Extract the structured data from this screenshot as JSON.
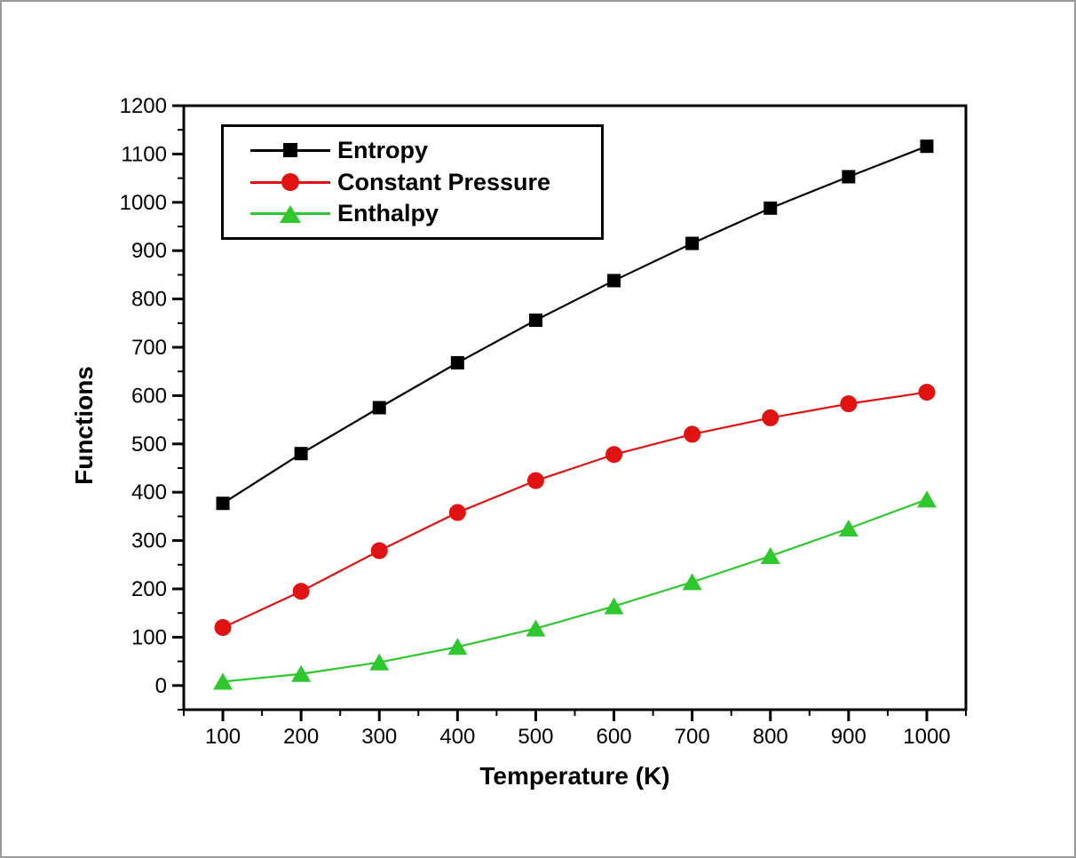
{
  "chart_data": {
    "type": "line",
    "x": [
      100,
      200,
      300,
      400,
      500,
      600,
      700,
      800,
      900,
      1000
    ],
    "series": [
      {
        "name": "Entropy",
        "marker": "square",
        "color": "#000000",
        "values": [
          377,
          480,
          575,
          668,
          756,
          838,
          915,
          988,
          1053,
          1116
        ]
      },
      {
        "name": "Constant Pressure",
        "marker": "circle",
        "color": "#e01212",
        "values": [
          120,
          195,
          279,
          358,
          424,
          478,
          520,
          554,
          583,
          607
        ]
      },
      {
        "name": "Enthalpy",
        "marker": "triangle",
        "color": "#2ec82e",
        "values": [
          8,
          24,
          48,
          80,
          118,
          164,
          214,
          268,
          325,
          385
        ]
      }
    ],
    "title": "",
    "xlabel": "Temperature (K)",
    "ylabel": "Functions",
    "xlim": [
      50,
      1050
    ],
    "ylim": [
      -50,
      1200
    ],
    "x_ticks": [
      100,
      200,
      300,
      400,
      500,
      600,
      700,
      800,
      900,
      1000
    ],
    "y_ticks": [
      0,
      100,
      200,
      300,
      400,
      500,
      600,
      700,
      800,
      900,
      1000,
      1100,
      1200
    ],
    "minor_tick_step": 50,
    "grid": false,
    "legend_position": "top-left",
    "frame_color": "#000000",
    "background_color": "#ffffff",
    "border_color": "#9a9a9a"
  }
}
